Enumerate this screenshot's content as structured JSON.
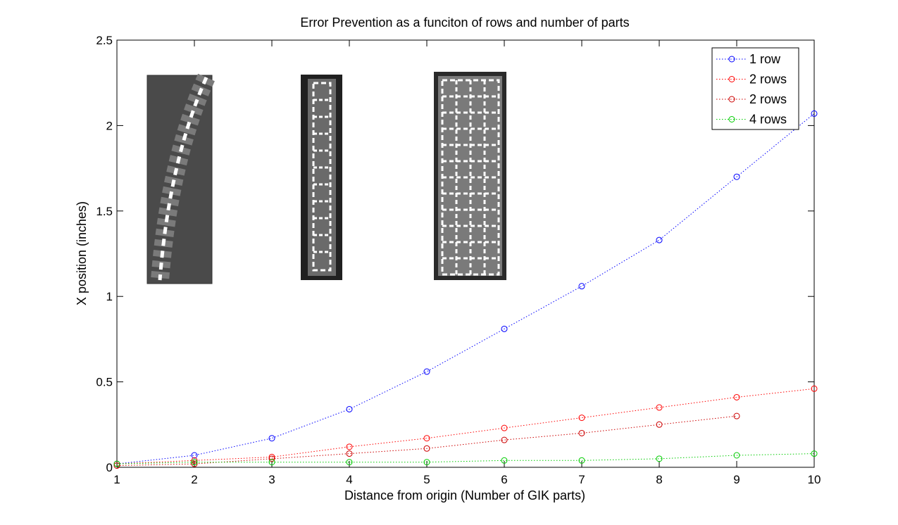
{
  "chart_data": {
    "type": "scatter",
    "title": "Error Prevention as a funciton of rows and number of parts",
    "xlabel": "Distance from origin (Number of GIK parts)",
    "ylabel": "X position (inches)",
    "xlim": [
      1,
      10
    ],
    "ylim": [
      0,
      2.5
    ],
    "xticks": [
      "1",
      "2",
      "3",
      "4",
      "5",
      "6",
      "7",
      "8",
      "9",
      "10"
    ],
    "yticks": [
      "0",
      "0.5",
      "1",
      "1.5",
      "2",
      "2.5"
    ],
    "grid": false,
    "legend_position": "top-right",
    "line_style": "dotted with circle markers",
    "series": [
      {
        "name": "1 row",
        "color": "#0000ff",
        "x": [
          1,
          2,
          3,
          4,
          5,
          6,
          7,
          8,
          9,
          10
        ],
        "y": [
          0.02,
          0.07,
          0.17,
          0.34,
          0.56,
          0.81,
          1.06,
          1.33,
          1.7,
          2.07
        ]
      },
      {
        "name": "2 rows",
        "color": "#ff0000",
        "x": [
          1,
          2,
          3,
          4,
          5,
          6,
          7,
          8,
          9,
          10
        ],
        "y": [
          0.02,
          0.04,
          0.06,
          0.12,
          0.17,
          0.23,
          0.29,
          0.35,
          0.41,
          0.46
        ]
      },
      {
        "name": "2 rows",
        "color": "#cc0000",
        "x": [
          1,
          2,
          3,
          4,
          5,
          6,
          7,
          8,
          9
        ],
        "y": [
          0.01,
          0.02,
          0.05,
          0.08,
          0.11,
          0.16,
          0.2,
          0.25,
          0.3
        ]
      },
      {
        "name": "4 rows",
        "color": "#00cc00",
        "x": [
          1,
          2,
          3,
          4,
          5,
          6,
          7,
          8,
          9,
          10
        ],
        "y": [
          0.02,
          0.03,
          0.03,
          0.03,
          0.03,
          0.04,
          0.04,
          0.05,
          0.07,
          0.08
        ]
      }
    ],
    "inset_images": [
      {
        "depicts": "photo of 1 row of parts (curved)"
      },
      {
        "depicts": "photo of 2 rows of parts"
      },
      {
        "depicts": "photo of 4 rows of parts"
      }
    ]
  }
}
